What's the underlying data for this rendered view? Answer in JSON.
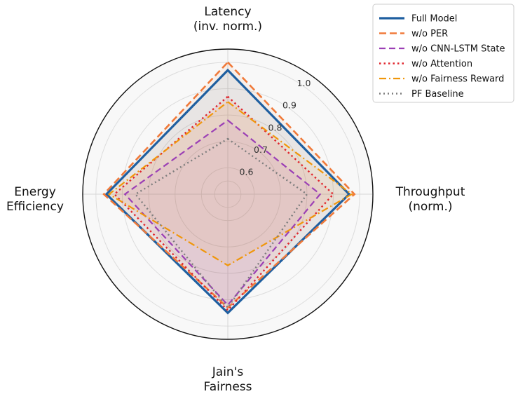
{
  "chart_data": {
    "type": "radar",
    "axes": [
      [
        "Latency",
        "(inv. norm.)"
      ],
      [
        "Throughput",
        "(norm.)"
      ],
      [
        "Jain's",
        "Fairness"
      ],
      [
        "Energy",
        "Efficiency"
      ]
    ],
    "rlim": [
      0.5,
      1.05
    ],
    "ticks": [
      "0.6",
      "0.7",
      "0.8",
      "0.9",
      "1.0"
    ],
    "tick_values": [
      0.6,
      0.7,
      0.8,
      0.9,
      1.0
    ],
    "grid": true,
    "legend": "top-right",
    "series": [
      {
        "name": "Full Model",
        "values": [
          0.97,
          0.96,
          0.95,
          0.96
        ],
        "color": "#1f5fa0",
        "dash": "",
        "width": 3.2,
        "fill": true
      },
      {
        "name": "w/o PER",
        "values": [
          1.0,
          0.98,
          0.93,
          0.97
        ],
        "color": "#f07a3a",
        "dash": "10,5",
        "width": 2.6,
        "fill": true
      },
      {
        "name": "w/o CNN-LSTM State",
        "values": [
          0.78,
          0.85,
          0.92,
          0.89
        ],
        "color": "#9b3fb5",
        "dash": "9,5",
        "width": 2.2,
        "fill": true
      },
      {
        "name": "w/o Attention",
        "values": [
          0.87,
          0.9,
          0.94,
          0.93
        ],
        "color": "#e0262d",
        "dash": "2.5,4",
        "width": 2.4,
        "fill": true
      },
      {
        "name": "w/o Fairness Reward",
        "values": [
          0.85,
          0.97,
          0.77,
          0.95
        ],
        "color": "#f0960a",
        "dash": "10,4,2,4",
        "width": 2.2,
        "fill": true
      },
      {
        "name": "PF Baseline",
        "values": [
          0.71,
          0.8,
          0.93,
          0.85
        ],
        "color": "#7d7d7d",
        "dash": "2,4",
        "width": 2.4,
        "fill": false
      }
    ]
  }
}
